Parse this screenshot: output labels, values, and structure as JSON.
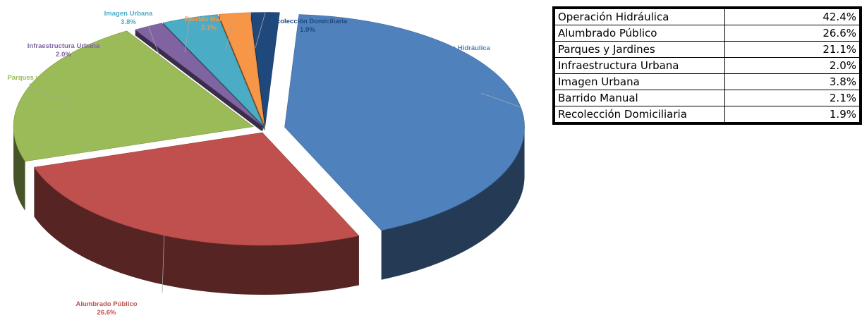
{
  "chart_data": {
    "type": "pie",
    "categories": [
      "Operación Hidráulica",
      "Alumbrado Público",
      "Parques y Jardines",
      "Infraestructura Urbana",
      "Imagen Urbana",
      "Barrido Manual",
      "Recolección Domiciliaria"
    ],
    "values": [
      42.4,
      26.6,
      21.1,
      2.0,
      3.8,
      2.1,
      1.9
    ],
    "value_labels": [
      "42.4%",
      "26.6%",
      "21.1%",
      "2.0%",
      "3.8%",
      "2.1%",
      "1.9%"
    ],
    "colors": [
      "#4f81bd",
      "#c0504d",
      "#9bbb59",
      "#8064a2",
      "#4bacc6",
      "#f79646",
      "#1f497d"
    ],
    "legend": "none",
    "style": "3d-exploded"
  },
  "table": {
    "rows": [
      {
        "name": "Operación Hidráulica",
        "value": "42.4%"
      },
      {
        "name": "Alumbrado Público",
        "value": "26.6%"
      },
      {
        "name": "Parques y Jardines",
        "value": "21.1%"
      },
      {
        "name": "Infraestructura Urbana",
        "value": "2.0%"
      },
      {
        "name": "Imagen Urbana",
        "value": "3.8%"
      },
      {
        "name": "Barrido Manual",
        "value": "2.1%"
      },
      {
        "name": "Recolección Domiciliaria",
        "value": "1.9%"
      }
    ]
  }
}
